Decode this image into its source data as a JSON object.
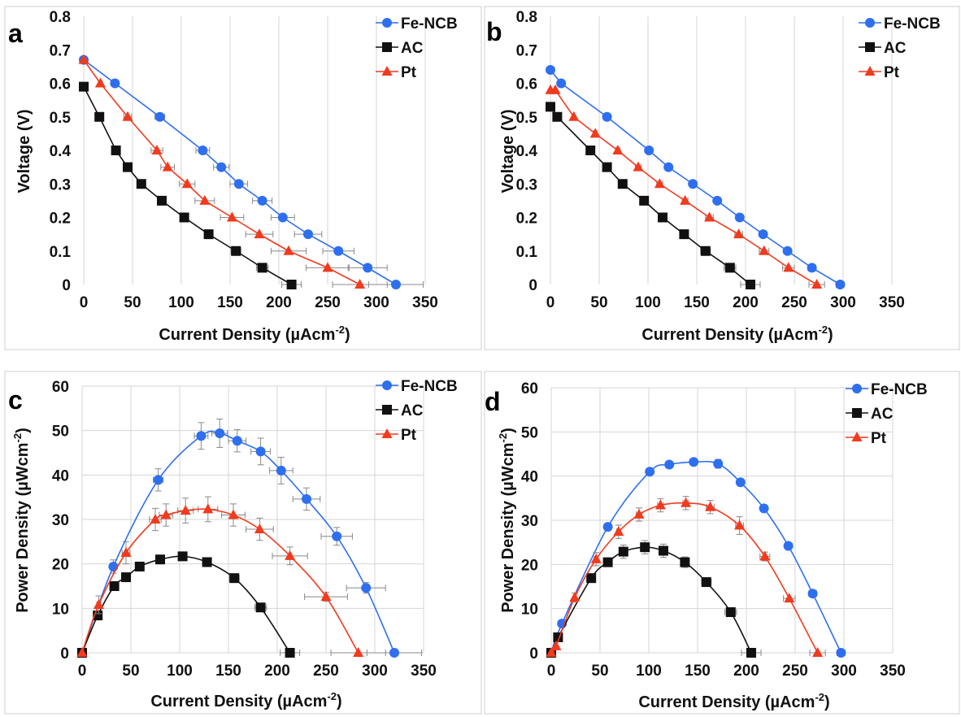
{
  "colors": {
    "fe": "#2E6FF0",
    "ac": "#111111",
    "pt": "#F23A1E",
    "grid": "#D4D4D4",
    "err": "#888888"
  },
  "chart_data": [
    {
      "type": "line",
      "panel": "a",
      "xlabel": "Current Density (µAcm",
      "xlabel_sup": "-2",
      "xlabel_tail": ")",
      "ylabel": "Voltage (V)",
      "xlim": [
        0,
        350
      ],
      "ylim": [
        0,
        0.8
      ],
      "xticks": [
        0,
        50,
        100,
        150,
        200,
        250,
        300,
        350
      ],
      "yticks": [
        0,
        0.1,
        0.2,
        0.3,
        0.4,
        0.5,
        0.6,
        0.7,
        0.8
      ],
      "grid": "vertical",
      "legend": "top-right",
      "series": [
        {
          "name": "Fe-NCB",
          "marker": "circle",
          "x": [
            0,
            32,
            78,
            122,
            141,
            159,
            183,
            204,
            230,
            261,
            291,
            320
          ],
          "y": [
            0.67,
            0.6,
            0.5,
            0.4,
            0.35,
            0.3,
            0.25,
            0.2,
            0.15,
            0.1,
            0.05,
            0
          ],
          "xerr": [
            0,
            3,
            5,
            7,
            8,
            9,
            10,
            12,
            14,
            16,
            20,
            28
          ]
        },
        {
          "name": "AC",
          "marker": "square",
          "x": [
            0,
            16,
            33,
            45,
            59,
            80,
            103,
            128,
            156,
            183,
            213
          ],
          "y": [
            0.59,
            0.5,
            0.4,
            0.35,
            0.3,
            0.25,
            0.2,
            0.15,
            0.1,
            0.05,
            0
          ],
          "xerr": [
            0,
            2,
            2,
            2,
            2,
            3,
            3,
            4,
            5,
            6,
            10
          ]
        },
        {
          "name": "Pt",
          "marker": "triangle",
          "x": [
            0,
            17,
            45,
            75,
            86,
            106,
            124,
            152,
            180,
            210,
            250,
            283
          ],
          "y": [
            0.67,
            0.6,
            0.5,
            0.4,
            0.35,
            0.3,
            0.25,
            0.2,
            0.15,
            0.1,
            0.05,
            0
          ],
          "xerr": [
            0,
            2,
            4,
            6,
            7,
            8,
            10,
            12,
            14,
            18,
            22,
            28
          ]
        }
      ]
    },
    {
      "type": "line",
      "panel": "b",
      "xlabel": "Current Density  (µAcm",
      "xlabel_sup": "-2",
      "xlabel_tail": ")",
      "ylabel": "Voltage (V)",
      "xlim": [
        0,
        350
      ],
      "ylim": [
        0,
        0.8
      ],
      "xticks": [
        0,
        50,
        100,
        150,
        200,
        250,
        300,
        350
      ],
      "yticks": [
        0,
        0.1,
        0.2,
        0.3,
        0.4,
        0.5,
        0.6,
        0.7,
        0.8
      ],
      "grid": "vertical",
      "legend": "top-right",
      "series": [
        {
          "name": "Fe-NCB",
          "marker": "circle",
          "x": [
            0,
            11,
            58,
            101,
            121,
            146,
            171,
            194,
            218,
            243,
            268,
            297
          ],
          "y": [
            0.64,
            0.6,
            0.5,
            0.4,
            0.35,
            0.3,
            0.25,
            0.2,
            0.15,
            0.1,
            0.05,
            0
          ],
          "xerr": [
            0,
            1,
            2,
            2,
            2,
            2,
            3,
            3,
            3,
            3,
            4,
            4
          ]
        },
        {
          "name": "AC",
          "marker": "square",
          "x": [
            0,
            7,
            41,
            58,
            74,
            96,
            115,
            137,
            159,
            184,
            205
          ],
          "y": [
            0.53,
            0.5,
            0.4,
            0.35,
            0.3,
            0.25,
            0.2,
            0.15,
            0.1,
            0.05,
            0
          ],
          "xerr": [
            0,
            1,
            2,
            2,
            3,
            3,
            4,
            4,
            5,
            6,
            10
          ]
        },
        {
          "name": "Pt",
          "marker": "triangle",
          "x": [
            0,
            5,
            24,
            46,
            69,
            90,
            112,
            138,
            163,
            193,
            219,
            244,
            273
          ],
          "y": [
            0.58,
            0.58,
            0.5,
            0.45,
            0.4,
            0.35,
            0.3,
            0.25,
            0.2,
            0.15,
            0.1,
            0.05,
            0
          ],
          "xerr": [
            0,
            1,
            1,
            2,
            2,
            3,
            3,
            3,
            4,
            4,
            5,
            6,
            8
          ]
        }
      ]
    },
    {
      "type": "line",
      "panel": "c",
      "xlabel": "Current Density (µAcm",
      "xlabel_sup": "-2",
      "xlabel_tail": ")",
      "ylabel": "Power Density (µWcm",
      "ylabel_sup": "-2",
      "ylabel_tail": ")",
      "xlim": [
        0,
        350
      ],
      "ylim": [
        0,
        60
      ],
      "xticks": [
        0,
        50,
        100,
        150,
        200,
        250,
        300,
        350
      ],
      "yticks": [
        0,
        10,
        20,
        30,
        40,
        50,
        60
      ],
      "grid": "both",
      "legend": "top-right",
      "series": [
        {
          "name": "Fe-NCB",
          "marker": "circle",
          "x": [
            0,
            32,
            78,
            122,
            141,
            159,
            183,
            204,
            230,
            261,
            291,
            320
          ],
          "y": [
            0,
            19.4,
            38.9,
            48.8,
            49.4,
            47.7,
            45.3,
            41.0,
            34.6,
            26.2,
            14.6,
            0
          ],
          "xerr": [
            0,
            3,
            5,
            7,
            8,
            9,
            10,
            12,
            14,
            16,
            20,
            28
          ],
          "yerr": [
            0,
            1.5,
            2.5,
            3.0,
            3.2,
            2.5,
            3.0,
            3.0,
            2.5,
            2.0,
            1.2,
            0
          ]
        },
        {
          "name": "AC",
          "marker": "square",
          "x": [
            0,
            16,
            33,
            45,
            59,
            80,
            103,
            128,
            156,
            183,
            213
          ],
          "y": [
            0,
            8.4,
            15.0,
            17.0,
            19.4,
            21.0,
            21.7,
            20.4,
            16.8,
            10.2,
            0
          ],
          "xerr": [
            0,
            2,
            2,
            2,
            2,
            3,
            3,
            4,
            5,
            6,
            10
          ],
          "yerr": [
            0,
            0,
            0,
            0,
            0,
            0,
            0,
            0,
            0,
            0,
            0
          ]
        },
        {
          "name": "Pt",
          "marker": "triangle",
          "x": [
            0,
            17,
            45,
            75,
            86,
            106,
            129,
            155,
            182,
            213,
            250,
            283
          ],
          "y": [
            0,
            10.8,
            22.5,
            30.0,
            31.0,
            32.0,
            32.3,
            31.0,
            27.8,
            21.8,
            12.6,
            0
          ],
          "xerr": [
            0,
            2,
            4,
            6,
            7,
            8,
            10,
            12,
            14,
            18,
            22,
            28
          ],
          "yerr": [
            0,
            2.0,
            2.5,
            2.5,
            2.5,
            2.8,
            2.8,
            2.5,
            2.5,
            2.0,
            1.0,
            0
          ]
        }
      ]
    },
    {
      "type": "line",
      "panel": "d",
      "xlabel": "Current Density  (µAcm",
      "xlabel_sup": "-2",
      "xlabel_tail": ")",
      "ylabel": "Power Density (µWcm",
      "ylabel_sup": "-2",
      "ylabel_tail": ")",
      "xlim": [
        0,
        350
      ],
      "ylim": [
        0,
        60
      ],
      "xticks": [
        0,
        50,
        100,
        150,
        200,
        250,
        300,
        350
      ],
      "yticks": [
        0,
        10,
        20,
        30,
        40,
        50,
        60
      ],
      "grid": "both",
      "legend": "top-right",
      "series": [
        {
          "name": "Fe-NCB",
          "marker": "circle",
          "x": [
            0,
            11,
            58,
            101,
            121,
            146,
            171,
            194,
            218,
            243,
            268,
            297
          ],
          "y": [
            0,
            6.6,
            28.5,
            41.0,
            42.6,
            43.2,
            42.8,
            38.6,
            32.7,
            24.2,
            13.4,
            0
          ],
          "xerr": [
            0,
            1,
            2,
            2,
            2,
            2,
            3,
            3,
            3,
            3,
            4,
            4
          ],
          "yerr": [
            0,
            0,
            0,
            0,
            0,
            0,
            1.0,
            0,
            0,
            0,
            0,
            0
          ]
        },
        {
          "name": "AC",
          "marker": "square",
          "x": [
            0,
            7,
            41,
            58,
            74,
            96,
            115,
            137,
            159,
            184,
            205
          ],
          "y": [
            0,
            3.5,
            16.9,
            20.5,
            22.9,
            23.9,
            23.1,
            20.5,
            16.0,
            9.2,
            0
          ],
          "xerr": [
            0,
            1,
            2,
            2,
            3,
            3,
            4,
            4,
            5,
            6,
            10
          ],
          "yerr": [
            0,
            0,
            0,
            0,
            1.5,
            1.5,
            1.5,
            1.2,
            0,
            0,
            0
          ]
        },
        {
          "name": "Pt",
          "marker": "triangle",
          "x": [
            0,
            5,
            24,
            46,
            69,
            90,
            112,
            138,
            163,
            193,
            219,
            244,
            273
          ],
          "y": [
            0,
            1.5,
            12.5,
            21.2,
            27.4,
            31.3,
            33.4,
            33.9,
            33.0,
            28.8,
            21.8,
            12.3,
            0
          ],
          "xerr": [
            0,
            1,
            1,
            2,
            2,
            3,
            3,
            3,
            4,
            4,
            5,
            6,
            8
          ],
          "yerr": [
            0,
            0,
            1.0,
            1.5,
            1.5,
            1.5,
            1.5,
            1.5,
            1.5,
            2.0,
            1.0,
            0,
            0
          ]
        }
      ]
    }
  ]
}
